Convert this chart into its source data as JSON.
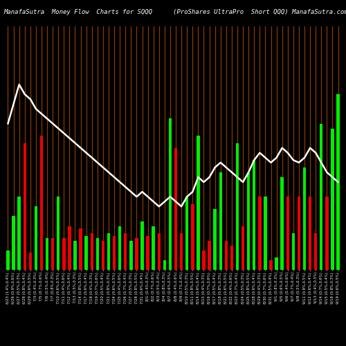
{
  "title_left": "ManafaSutra  Money Flow  Charts for SQQQ",
  "title_right": "(ProShares UltraPro  Short QQQ) ManafaSutra.com",
  "background_color": "#000000",
  "bar_colors": [
    "green",
    "green",
    "green",
    "red",
    "red",
    "green",
    "red",
    "green",
    "red",
    "green",
    "red",
    "red",
    "green",
    "red",
    "green",
    "red",
    "green",
    "red",
    "green",
    "red",
    "green",
    "red",
    "green",
    "red",
    "green",
    "red",
    "green",
    "red",
    "green",
    "green",
    "red",
    "red",
    "green",
    "red",
    "green",
    "red",
    "red",
    "green",
    "green",
    "red",
    "red",
    "green",
    "red",
    "green",
    "green",
    "red",
    "green",
    "red",
    "green",
    "green",
    "red",
    "green",
    "red",
    "green",
    "red",
    "red",
    "green",
    "red",
    "green",
    "green"
  ],
  "bar_heights": [
    0.08,
    0.22,
    0.3,
    0.52,
    0.07,
    0.26,
    0.55,
    0.13,
    0.13,
    0.3,
    0.13,
    0.18,
    0.12,
    0.17,
    0.14,
    0.15,
    0.13,
    0.12,
    0.15,
    0.14,
    0.18,
    0.15,
    0.12,
    0.13,
    0.2,
    0.14,
    0.18,
    0.15,
    0.04,
    0.62,
    0.5,
    0.15,
    0.3,
    0.27,
    0.55,
    0.08,
    0.12,
    0.25,
    0.4,
    0.12,
    0.1,
    0.52,
    0.18,
    0.4,
    0.45,
    0.3,
    0.3,
    0.04,
    0.05,
    0.38,
    0.3,
    0.15,
    0.3,
    0.42,
    0.3,
    0.15,
    0.6,
    0.3,
    0.58,
    0.72
  ],
  "line_values": [
    0.6,
    0.68,
    0.76,
    0.72,
    0.7,
    0.66,
    0.64,
    0.62,
    0.6,
    0.58,
    0.56,
    0.54,
    0.52,
    0.5,
    0.48,
    0.46,
    0.44,
    0.42,
    0.4,
    0.38,
    0.36,
    0.34,
    0.32,
    0.3,
    0.32,
    0.3,
    0.28,
    0.26,
    0.28,
    0.3,
    0.28,
    0.26,
    0.3,
    0.32,
    0.38,
    0.36,
    0.38,
    0.42,
    0.44,
    0.42,
    0.4,
    0.38,
    0.36,
    0.4,
    0.45,
    0.48,
    0.46,
    0.44,
    0.46,
    0.5,
    0.48,
    0.45,
    0.44,
    0.46,
    0.5,
    0.48,
    0.44,
    0.4,
    0.38,
    0.36
  ],
  "x_labels": [
    "6/23 (1.4%,0.4%)",
    "6/26 (0.9%,0.6%)",
    "6/27 (0.5%,0.3%)",
    "6/28 (0.8%,0.4%)",
    "6/29 (0.6%,0.5%)",
    "7/3 (0.4%,0.3%)",
    "7/5 (0.7%,0.6%)",
    "7/6 (0.5%,0.4%)",
    "7/7 (0.8%,0.3%)",
    "7/10 (0.6%,0.5%)",
    "7/11 (0.4%,0.6%)",
    "7/12 (0.7%,0.4%)",
    "7/13 (0.5%,0.3%)",
    "7/14 (0.8%,0.5%)",
    "7/17 (0.6%,0.4%)",
    "7/18 (0.4%,0.3%)",
    "7/19 (0.7%,0.6%)",
    "7/20 (0.5%,0.4%)",
    "7/21 (0.8%,0.3%)",
    "7/24 (0.6%,0.5%)",
    "7/25 (0.4%,0.6%)",
    "7/26 (0.7%,0.4%)",
    "7/27 (0.5%,0.3%)",
    "7/28 (0.8%,0.5%)",
    "7/31 (0.6%,0.4%)",
    "8/1 (0.4%,0.3%)",
    "8/2 (0.7%,0.6%)",
    "8/3 (0.5%,0.4%)",
    "8/4 (0.8%,0.3%)",
    "8/7 (0.6%,0.5%)",
    "8/8 (0.4%,0.6%)",
    "8/9 (0.7%,0.4%)",
    "8/10 (0.5%,0.3%)",
    "8/11 (0.8%,0.5%)",
    "8/14 (0.6%,0.4%)",
    "8/15 (0.4%,0.3%)",
    "8/16 (0.7%,0.6%)",
    "8/17 (0.5%,0.4%)",
    "8/18 (0.8%,0.3%)",
    "8/21 (0.6%,0.5%)",
    "8/22 (0.4%,0.6%)",
    "8/23 (0.7%,0.4%)",
    "8/24 (0.5%,0.3%)",
    "8/25 (0.8%,0.5%)",
    "8/28 (0.6%,0.4%)",
    "8/29 (0.4%,0.3%)",
    "8/30 (0.7%,0.6%)",
    "8/31 (0.5%,0.4%)",
    "9/1 (0.8%,0.3%)",
    "9/5 (0.6%,0.5%)",
    "9/6 (0.4%,0.6%)",
    "9/7 (0.7%,0.4%)",
    "9/8 (0.5%,0.3%)",
    "9/11 (0.8%,0.5%)",
    "9/12 (0.6%,0.4%)",
    "9/13 (0.4%,0.3%)",
    "9/14 (0.7%,0.6%)",
    "9/15 (0.5%,0.4%)",
    "9/18 (0.8%,0.3%)",
    "9/19 (0.6%,0.5%)"
  ],
  "n_bars": 60,
  "ylim": [
    0,
    1.0
  ],
  "line_color": "#ffffff",
  "line_width": 1.8,
  "orange_line_color": "#8B3A00",
  "title_fontsize": 6.5,
  "tick_fontsize": 3.8
}
